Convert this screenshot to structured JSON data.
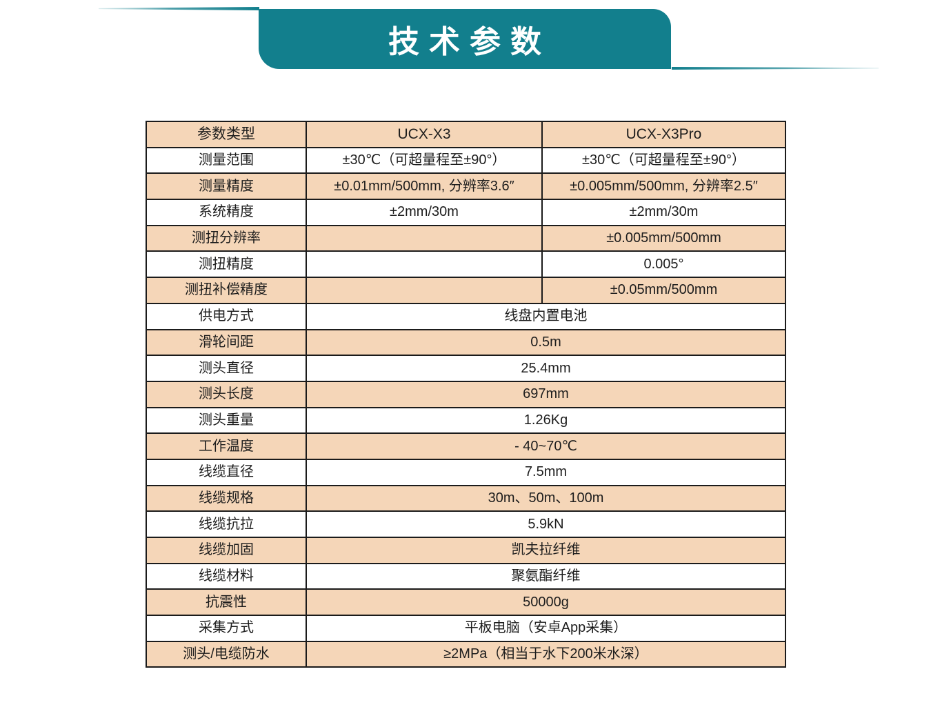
{
  "banner": {
    "title": "技术参数"
  },
  "theme": {
    "teal": "#127f8d",
    "peach": "#f5d6b8",
    "border": "#1b1b1b",
    "text": "#1d1d1d",
    "white_row": "#ffffff"
  },
  "table": {
    "columns": [
      {
        "label": "参数类型"
      },
      {
        "label": "UCX-X3"
      },
      {
        "label": "UCX-X3Pro"
      }
    ],
    "rows": [
      {
        "label": "测量范围",
        "merged": false,
        "x3": "±30℃（可超量程至±90°）",
        "x3pro": "±30℃（可超量程至±90°）"
      },
      {
        "label": "测量精度",
        "merged": false,
        "x3": "±0.01mm/500mm, 分辨率3.6″",
        "x3pro": "±0.005mm/500mm, 分辨率2.5″"
      },
      {
        "label": "系统精度",
        "merged": false,
        "x3": "±2mm/30m",
        "x3pro": "±2mm/30m"
      },
      {
        "label": "测扭分辨率",
        "merged": false,
        "x3": "",
        "x3pro": "±0.005mm/500mm"
      },
      {
        "label": "测扭精度",
        "merged": false,
        "x3": "",
        "x3pro": "0.005°"
      },
      {
        "label": "测扭补偿精度",
        "merged": false,
        "x3": "",
        "x3pro": "±0.05mm/500mm"
      },
      {
        "label": "供电方式",
        "merged": true,
        "value": "线盘内置电池"
      },
      {
        "label": "滑轮间距",
        "merged": true,
        "value": "0.5m"
      },
      {
        "label": "测头直径",
        "merged": true,
        "value": "25.4mm"
      },
      {
        "label": "测头长度",
        "merged": true,
        "value": "697mm"
      },
      {
        "label": "测头重量",
        "merged": true,
        "value": "1.26Kg"
      },
      {
        "label": "工作温度",
        "merged": true,
        "value": "- 40~70℃"
      },
      {
        "label": "线缆直径",
        "merged": true,
        "value": "7.5mm"
      },
      {
        "label": "线缆规格",
        "merged": true,
        "value": "30m、50m、100m"
      },
      {
        "label": "线缆抗拉",
        "merged": true,
        "value": "5.9kN"
      },
      {
        "label": "线缆加固",
        "merged": true,
        "value": "凯夫拉纤维"
      },
      {
        "label": "线缆材料",
        "merged": true,
        "value": "聚氨酯纤维"
      },
      {
        "label": "抗震性",
        "merged": true,
        "value": "50000g"
      },
      {
        "label": "采集方式",
        "merged": true,
        "value": "平板电脑（安卓App采集）"
      },
      {
        "label": "测头/电缆防水",
        "merged": true,
        "value": "≥2MPa（相当于水下200米水深）"
      }
    ]
  }
}
